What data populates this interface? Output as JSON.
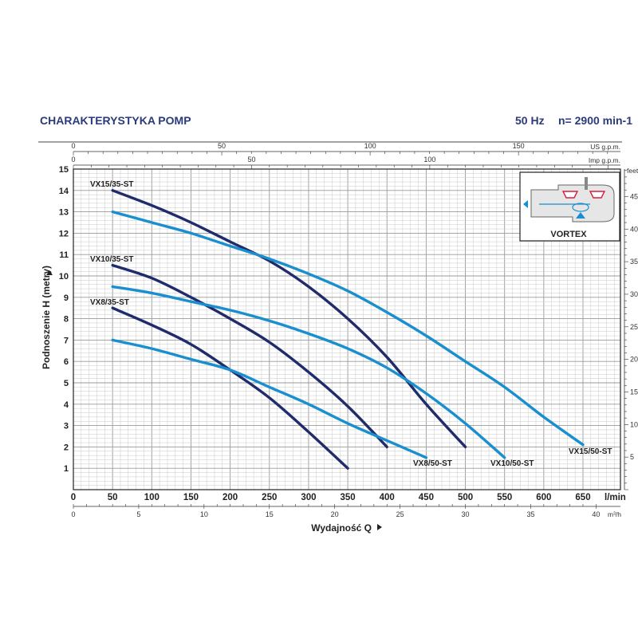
{
  "header": {
    "title": "CHARAKTERYSTYKA POMP",
    "frequency": "50 Hz",
    "speed": "n= 2900 min-1"
  },
  "colors": {
    "header_text": "#2b3a7a",
    "vx35_curve": "#1f2b6b",
    "vx50_curve": "#1a8fcf",
    "grid_minor": "#c8c8c8",
    "grid_major": "#9a9a9a"
  },
  "chart_data": {
    "type": "line",
    "xlabel": "Wydajność Q",
    "ylabel": "Podnoszenie H (metry)",
    "x_unit": "l/min",
    "xlim": [
      0,
      700
    ],
    "ylim": [
      0,
      15
    ],
    "x_ticks": [
      0,
      50,
      100,
      150,
      200,
      250,
      300,
      350,
      400,
      450,
      500,
      550,
      600,
      650
    ],
    "y_ticks": [
      1,
      2,
      3,
      4,
      5,
      6,
      7,
      8,
      9,
      10,
      11,
      12,
      13,
      14,
      15
    ],
    "grid": true,
    "secondary_axes": {
      "us_gpm": {
        "label": "US g.p.m.",
        "ticks": [
          0,
          50,
          100,
          150
        ]
      },
      "imp_gpm": {
        "label": "Imp g.p.m.",
        "ticks": [
          0,
          50,
          100
        ]
      },
      "feet": {
        "label": "feet",
        "ticks": [
          5,
          10,
          15,
          20,
          25,
          30,
          35,
          40,
          45
        ]
      },
      "m3h": {
        "label": "m³/h",
        "ticks": [
          0,
          5,
          10,
          15,
          20,
          25,
          30,
          35,
          40
        ]
      }
    },
    "series": [
      {
        "name": "VX15/35-ST",
        "group": "35",
        "x": [
          50,
          100,
          150,
          200,
          250,
          300,
          350,
          400,
          450,
          500
        ],
        "y": [
          14.0,
          13.3,
          12.5,
          11.6,
          10.7,
          9.5,
          8.0,
          6.2,
          4.0,
          2.0
        ]
      },
      {
        "name": "VX15/50-ST",
        "group": "50",
        "x": [
          50,
          100,
          150,
          200,
          250,
          300,
          350,
          400,
          450,
          500,
          550,
          600,
          650
        ],
        "y": [
          13.0,
          12.5,
          12.0,
          11.4,
          10.8,
          10.1,
          9.3,
          8.3,
          7.2,
          6.0,
          4.8,
          3.4,
          2.1
        ]
      },
      {
        "name": "VX10/35-ST",
        "group": "35",
        "x": [
          50,
          100,
          150,
          200,
          250,
          300,
          350,
          400
        ],
        "y": [
          10.5,
          9.9,
          9.0,
          8.0,
          6.9,
          5.5,
          3.9,
          2.0
        ]
      },
      {
        "name": "VX10/50-ST",
        "group": "50",
        "x": [
          50,
          100,
          150,
          200,
          250,
          300,
          350,
          400,
          450,
          500,
          550
        ],
        "y": [
          9.5,
          9.2,
          8.8,
          8.4,
          7.9,
          7.3,
          6.6,
          5.7,
          4.5,
          3.1,
          1.5
        ]
      },
      {
        "name": "VX8/35-ST",
        "group": "35",
        "x": [
          50,
          100,
          150,
          200,
          250,
          300,
          350
        ],
        "y": [
          8.5,
          7.7,
          6.8,
          5.6,
          4.3,
          2.7,
          1.0
        ]
      },
      {
        "name": "VX8/50-ST",
        "group": "50",
        "x": [
          50,
          100,
          150,
          200,
          250,
          300,
          350,
          400,
          450
        ],
        "y": [
          7.0,
          6.6,
          6.1,
          5.6,
          4.8,
          4.0,
          3.1,
          2.3,
          1.5
        ]
      }
    ],
    "inset_label": "VORTEX"
  }
}
